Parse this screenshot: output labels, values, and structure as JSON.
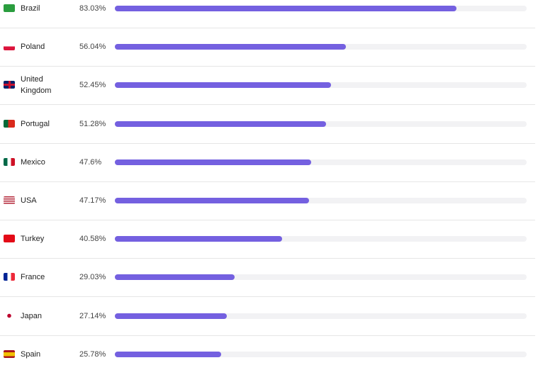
{
  "chart_data": {
    "type": "bar",
    "orientation": "horizontal",
    "categories": [
      "Brazil",
      "Poland",
      "United Kingdom",
      "Portugal",
      "Mexico",
      "USA",
      "Turkey",
      "France",
      "Japan",
      "Spain"
    ],
    "values": [
      83.03,
      56.04,
      52.45,
      51.28,
      47.6,
      47.17,
      40.58,
      29.03,
      27.14,
      25.78
    ],
    "value_labels": [
      "83.03%",
      "56.04%",
      "52.45%",
      "51.28%",
      "47.6%",
      "47.17%",
      "40.58%",
      "29.03%",
      "27.14%",
      "25.78%"
    ],
    "xlim": [
      0,
      100
    ],
    "color": "#7460e0"
  }
}
